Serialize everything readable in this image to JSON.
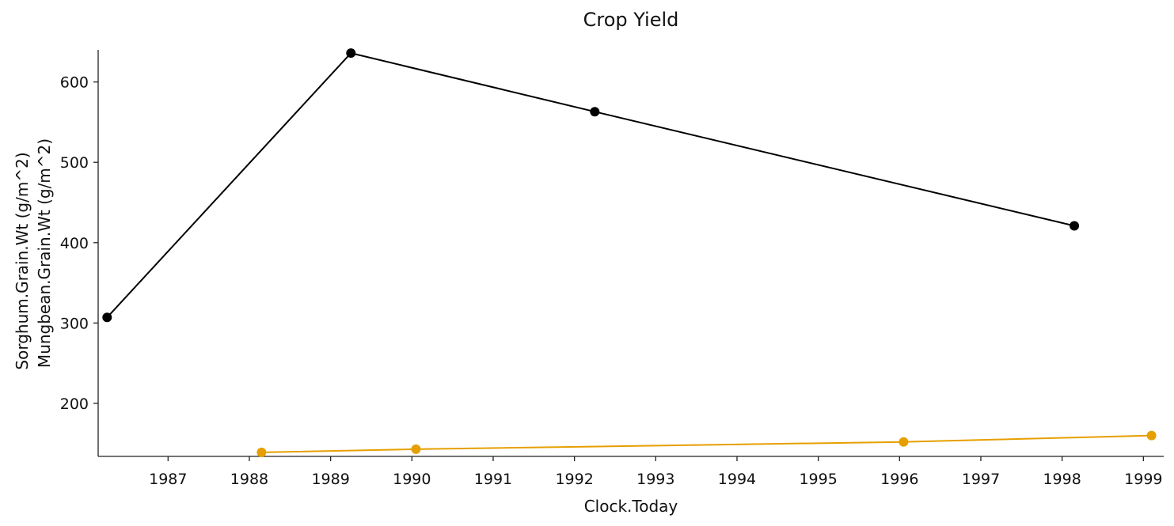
{
  "chart_data": {
    "type": "line",
    "title": "Crop Yield",
    "xlabel": "Clock.Today",
    "ylabel_lines": [
      "Sorghum.Grain.Wt (g/m^2)",
      "Mungbean.Grain.Wt (g/m^2)"
    ],
    "x_ticks": [
      "1987",
      "1988",
      "1989",
      "1990",
      "1991",
      "1992",
      "1993",
      "1994",
      "1995",
      "1996",
      "1997",
      "1998",
      "1999"
    ],
    "y_ticks": [
      "200",
      "300",
      "400",
      "500",
      "600"
    ],
    "xlim": [
      1986.14,
      1999.25
    ],
    "ylim": [
      134,
      640
    ],
    "grid": false,
    "series": [
      {
        "color": "#000000",
        "x": [
          1986.25,
          1989.25,
          1992.25,
          1998.15
        ],
        "y": [
          307,
          636,
          563,
          421
        ]
      },
      {
        "color": "#E69F00",
        "x": [
          1988.15,
          1990.05,
          1996.05,
          1999.1
        ],
        "y": [
          139,
          143,
          152,
          160
        ]
      }
    ]
  }
}
